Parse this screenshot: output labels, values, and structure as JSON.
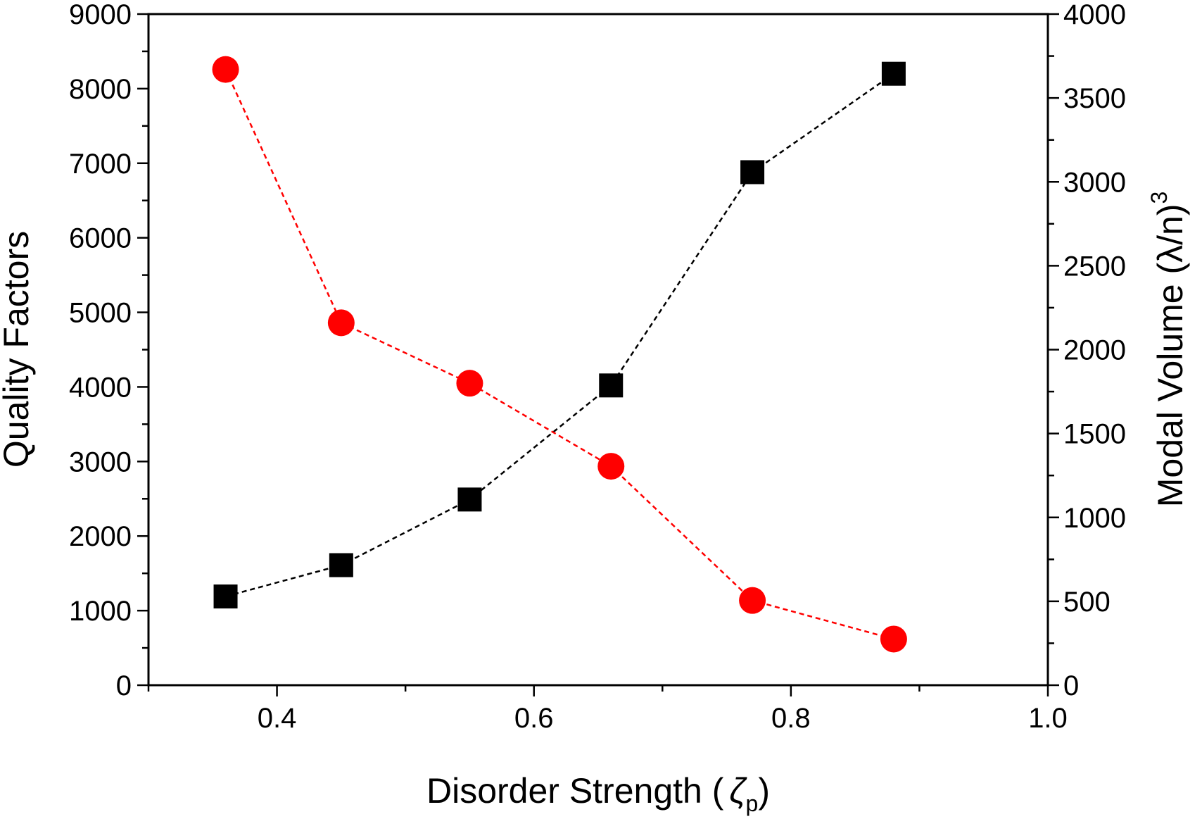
{
  "chart_data": {
    "type": "scatter",
    "title": "",
    "x": [
      0.36,
      0.45,
      0.55,
      0.66,
      0.77,
      0.88
    ],
    "xlabel": {
      "main": "Disorder Strength (",
      "symbol": "ζ",
      "sub": "p",
      "close": ")"
    },
    "ylabel": "Quality Factors",
    "y2label": {
      "main": "Modal Volume (λ/n)",
      "sup": "3"
    },
    "xlim": [
      0.3,
      1.0
    ],
    "ylim": [
      0,
      9000
    ],
    "y2lim": [
      0,
      4000
    ],
    "xticks": [
      "0.4",
      "0.6",
      "0.8",
      "1.0"
    ],
    "yticks": [
      "0",
      "1000",
      "2000",
      "3000",
      "4000",
      "5000",
      "6000",
      "7000",
      "8000",
      "9000"
    ],
    "y2ticks": [
      "0",
      "500",
      "1000",
      "1500",
      "2000",
      "2500",
      "3000",
      "3500",
      "4000"
    ],
    "grid": false,
    "series": [
      {
        "axis": "left",
        "marker": "square",
        "color": "#000000",
        "line": "dashed",
        "values": [
          1190,
          1610,
          2490,
          4020,
          6880,
          8200
        ]
      },
      {
        "axis": "right",
        "marker": "circle",
        "color": "#ff0000",
        "line": "dashed",
        "values": [
          3670,
          2160,
          1800,
          1305,
          505,
          275
        ]
      }
    ]
  }
}
